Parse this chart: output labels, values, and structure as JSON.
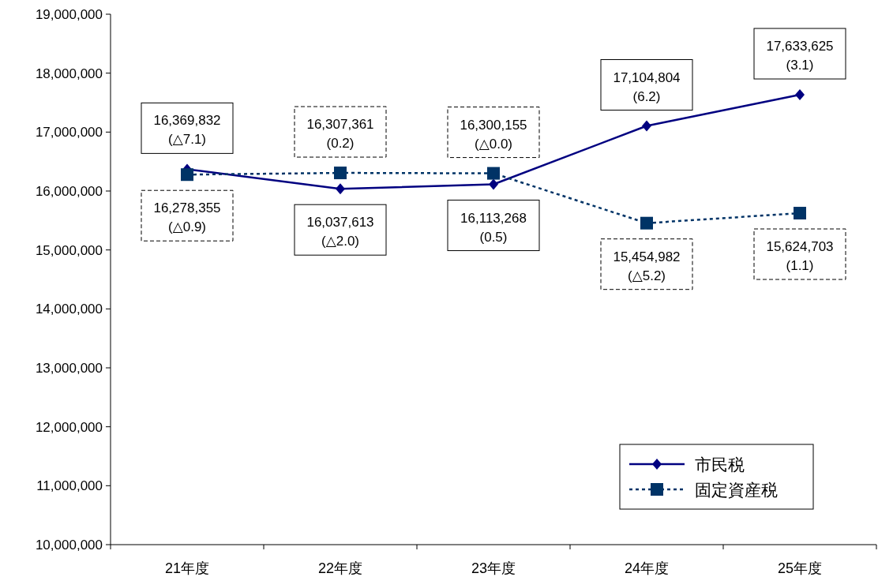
{
  "chart_data": {
    "type": "line",
    "categories": [
      "21年度",
      "22年度",
      "23年度",
      "24年度",
      "25年度"
    ],
    "ylim": [
      10000000,
      19000000
    ],
    "yticks": [
      {
        "value": 10000000,
        "label": "10,000,000"
      },
      {
        "value": 11000000,
        "label": "11,000,000"
      },
      {
        "value": 12000000,
        "label": "12,000,000"
      },
      {
        "value": 13000000,
        "label": "13,000,000"
      },
      {
        "value": 14000000,
        "label": "14,000,000"
      },
      {
        "value": 15000000,
        "label": "15,000,000"
      },
      {
        "value": 16000000,
        "label": "16,000,000"
      },
      {
        "value": 17000000,
        "label": "17,000,000"
      },
      {
        "value": 18000000,
        "label": "18,000,000"
      },
      {
        "value": 19000000,
        "label": "19,000,000"
      }
    ],
    "grid": false,
    "legend": "bottom right",
    "series": [
      {
        "name": "市民税",
        "color": "#000080",
        "marker": "diamond",
        "line_style": "solid",
        "values": [
          16369832,
          16037613,
          16113268,
          17104804,
          17633625
        ],
        "value_labels": [
          "16,369,832\n(△7.1)",
          "16,037,613\n(△2.0)",
          "16,113,268\n(0.5)",
          "17,104,804\n(6.2)",
          "17,633,625\n(3.1)"
        ]
      },
      {
        "name": "固定資産税",
        "color": "#003366",
        "marker": "square",
        "line_style": "dotted",
        "values": [
          16278355,
          16307361,
          16300155,
          15454982,
          15624703
        ],
        "value_labels": [
          "16,278,355\n(△0.9)",
          "16,307,361\n(0.2)",
          "16,300,155\n(△0.0)",
          "15,454,982\n(△5.2)",
          "15,624,703\n(1.1)"
        ]
      }
    ]
  }
}
